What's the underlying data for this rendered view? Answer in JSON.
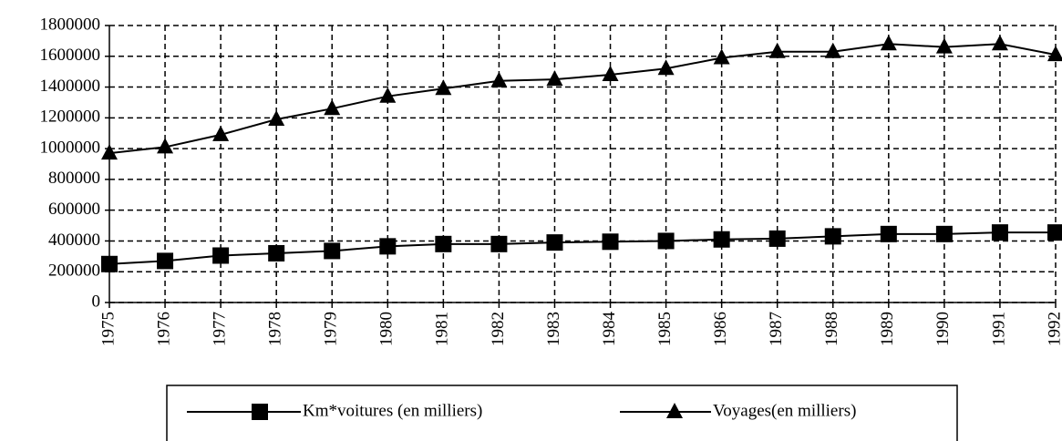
{
  "chart_data": {
    "type": "line",
    "categories": [
      "1975",
      "1976",
      "1977",
      "1978",
      "1979",
      "1980",
      "1981",
      "1982",
      "1983",
      "1984",
      "1985",
      "1986",
      "1987",
      "1988",
      "1989",
      "1990",
      "1991",
      "1992"
    ],
    "series": [
      {
        "name": "Km*voitures (en milliers)",
        "color": "#000000",
        "marker": "square",
        "values": [
          250000,
          270000,
          305000,
          320000,
          335000,
          365000,
          380000,
          380000,
          390000,
          395000,
          400000,
          410000,
          415000,
          430000,
          445000,
          445000,
          455000,
          455000
        ]
      },
      {
        "name": "Voyages(en milliers)",
        "color": "#000000",
        "marker": "triangle",
        "values": [
          970000,
          1010000,
          1090000,
          1190000,
          1260000,
          1340000,
          1390000,
          1440000,
          1450000,
          1480000,
          1520000,
          1590000,
          1630000,
          1630000,
          1680000,
          1660000,
          1680000,
          1610000
        ]
      }
    ],
    "ylim": [
      0,
      1800000
    ],
    "yticks": [
      0,
      200000,
      400000,
      600000,
      800000,
      1000000,
      1200000,
      1400000,
      1600000,
      1800000
    ],
    "grid": true,
    "grid_style": "dashed",
    "legend": "bottom"
  }
}
